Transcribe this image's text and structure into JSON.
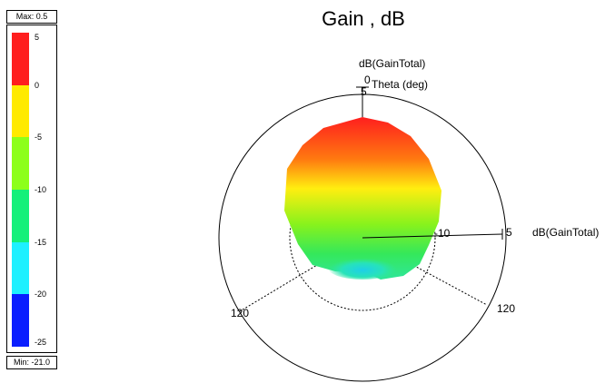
{
  "title": "Gain , dB",
  "legend": {
    "max_label": "Max: 0.5",
    "min_label": "Min: -21.0",
    "ticks": [
      "5",
      "0",
      "-5",
      "-10",
      "-15",
      "-20",
      "-25"
    ],
    "colors": [
      "#ff1e1e",
      "#ffea00",
      "#8dff1a",
      "#14f07a",
      "#1ef0ff",
      "#0a1eff"
    ]
  },
  "chart_data": {
    "type": "polar-3d-radiation-pattern",
    "quantity": "dB(GainTotal)",
    "max": 0.5,
    "min": -21.0,
    "color_scale": {
      "ticks": [
        5,
        0,
        -5,
        -10,
        -15,
        -20,
        -25
      ]
    },
    "axes": {
      "z_label": "dB(GainTotal)",
      "z_angle_label": "0",
      "theta_label": "Theta (deg)",
      "radial_label": "dB(GainTotal)",
      "radial_ticks": [
        "5",
        "-10",
        "5"
      ],
      "angle_ticks": [
        "120",
        "120"
      ]
    }
  }
}
